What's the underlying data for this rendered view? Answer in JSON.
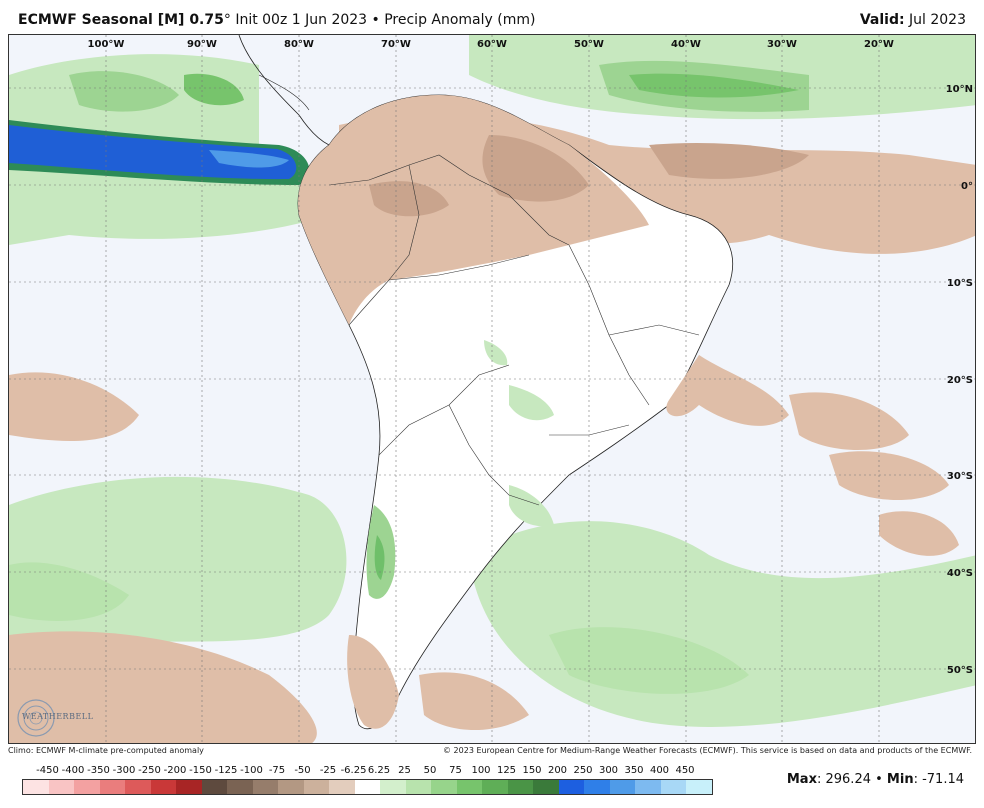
{
  "header": {
    "title_bold": "ECMWF Seasonal [M] 0.75",
    "title_deg": "°",
    "title_rest": "Init 00z 1 Jun 2023 • Precip Anomaly (mm)",
    "valid_label": "Valid:",
    "valid_value": "Jul 2023"
  },
  "map": {
    "lon_labels": [
      "100°W",
      "90°W",
      "80°W",
      "70°W",
      "60°W",
      "50°W",
      "40°W",
      "30°W",
      "20°W"
    ],
    "lat_labels": [
      "10°N",
      "0°",
      "10°S",
      "20°S",
      "30°S",
      "40°S",
      "50°S"
    ],
    "colors": {
      "ocean": "#f2f5fb",
      "land": "#ffffff",
      "dry_light": "#dfbea8",
      "dry_mid": "#c9a48d",
      "wet_light": "#c7e8bf",
      "wet_mid": "#9dd492",
      "wet_dark": "#6fbf6a",
      "blue_dark": "#1f5fd6",
      "blue_light": "#4f9be8"
    }
  },
  "footer": {
    "climo": "Climo: ECMWF M-climate pre-computed anomaly",
    "copyright": "© 2023 European Centre for Medium-Range Weather Forecasts (ECMWF). This service is based on data and products of the ECMWF."
  },
  "legend": {
    "labels": [
      "-450",
      "-400",
      "-350",
      "-300",
      "-250",
      "-200",
      "-150",
      "-125",
      "-100",
      "-75",
      "-50",
      "-25",
      "-6.25",
      "6.25",
      "25",
      "50",
      "75",
      "100",
      "125",
      "150",
      "200",
      "250",
      "300",
      "350",
      "400",
      "450"
    ],
    "colors": [
      "#fde3e3",
      "#f9c4c4",
      "#f3a1a1",
      "#ea7d7d",
      "#dd5a5a",
      "#c93838",
      "#a82525",
      "#5e4a3e",
      "#7a6353",
      "#967d6b",
      "#b39883",
      "#ccb19c",
      "#e3cdbd",
      "#ffffff",
      "#d3efcc",
      "#b8e3ad",
      "#97d48b",
      "#77c46c",
      "#5fae57",
      "#4a9446",
      "#3a7a3a",
      "#1d5fe0",
      "#2f7fe8",
      "#4f9be8",
      "#7dbaf0",
      "#a8d8f6",
      "#c8f0fa"
    ]
  },
  "stats": {
    "max_label": "Max",
    "max_value": ": 296.24",
    "sep": " • ",
    "min_label": "Min",
    "min_value": ": -71.14"
  },
  "logo": {
    "text": "WEATHERBELL"
  }
}
